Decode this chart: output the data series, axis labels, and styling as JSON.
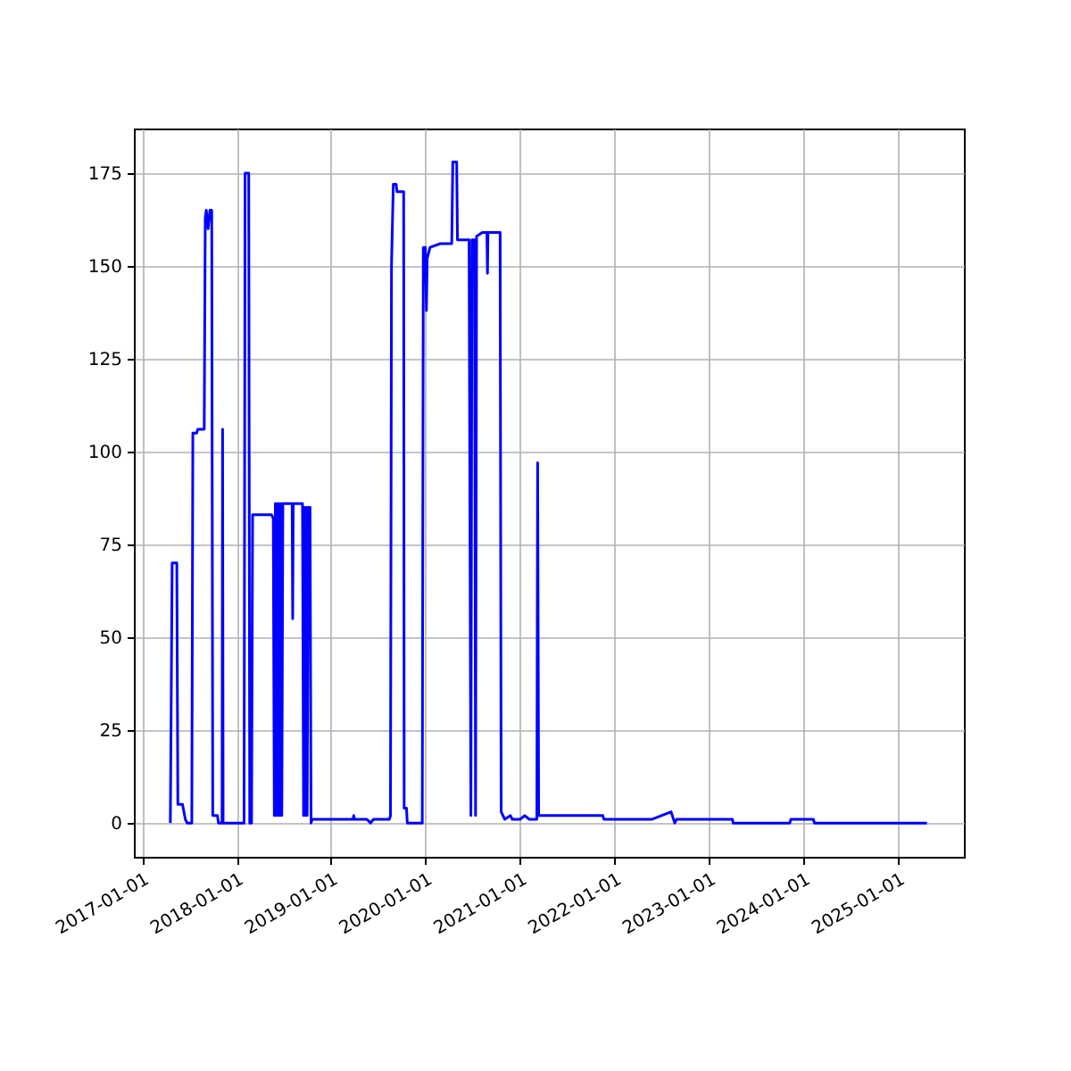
{
  "chart_data": {
    "type": "line",
    "x": [
      "2017-04-20",
      "2017-04-27",
      "2017-05-15",
      "2017-05-19",
      "2017-06-06",
      "2017-06-17",
      "2017-06-24",
      "2017-07-12",
      "2017-07-16",
      "2017-07-31",
      "2017-08-04",
      "2017-08-29",
      "2017-09-02",
      "2017-09-06",
      "2017-09-13",
      "2017-09-20",
      "2017-09-27",
      "2017-10-01",
      "2017-10-19",
      "2017-10-23",
      "2017-11-06",
      "2017-11-08",
      "2017-11-10",
      "2018-01-30",
      "2018-02-03",
      "2018-02-17",
      "2018-02-21",
      "2018-02-28",
      "2018-03-04",
      "2018-05-16",
      "2018-05-23",
      "2018-05-27",
      "2018-05-31",
      "2018-06-03",
      "2018-06-07",
      "2018-06-11",
      "2018-06-14",
      "2018-06-18",
      "2018-06-21",
      "2018-06-25",
      "2018-06-29",
      "2018-08-04",
      "2018-08-06",
      "2018-08-08",
      "2018-09-13",
      "2018-09-17",
      "2018-09-20",
      "2018-09-24",
      "2018-09-28",
      "2018-10-01",
      "2018-10-05",
      "2018-10-12",
      "2018-10-16",
      "2018-10-20",
      "2019-03-27",
      "2019-03-30",
      "2019-04-02",
      "2019-05-20",
      "2019-06-03",
      "2019-06-14",
      "2019-08-15",
      "2019-08-19",
      "2019-08-23",
      "2019-08-30",
      "2019-09-10",
      "2019-09-13",
      "2019-10-09",
      "2019-10-11",
      "2019-10-20",
      "2019-10-23",
      "2019-12-20",
      "2019-12-24",
      "2020-01-01",
      "2020-01-05",
      "2020-01-08",
      "2020-01-19",
      "2020-02-28",
      "2020-04-12",
      "2020-04-16",
      "2020-05-01",
      "2020-05-04",
      "2020-06-18",
      "2020-06-25",
      "2020-06-29",
      "2020-07-09",
      "2020-07-13",
      "2020-07-17",
      "2020-08-08",
      "2020-08-26",
      "2020-08-28",
      "2020-08-30",
      "2020-10-16",
      "2020-10-20",
      "2020-11-03",
      "2020-11-25",
      "2020-12-02",
      "2021-01-01",
      "2021-01-19",
      "2021-02-06",
      "2021-03-07",
      "2021-03-10",
      "2021-03-14",
      "2021-11-17",
      "2021-11-21",
      "2022-05-27",
      "2022-08-08",
      "2022-08-22",
      "2022-08-29",
      "2023-04-02",
      "2023-04-05",
      "2023-11-10",
      "2023-11-14",
      "2024-02-09",
      "2024-02-13",
      "2025-04-23"
    ],
    "series": [
      {
        "color": "#0000ff",
        "values": [
          0,
          70,
          70,
          5,
          5,
          1,
          0,
          0,
          105,
          105,
          106,
          106,
          163,
          165,
          160,
          165,
          165,
          2,
          2,
          0,
          0,
          106,
          0,
          0,
          175,
          175,
          0,
          0,
          83,
          83,
          82,
          2,
          86,
          2,
          86,
          2,
          86,
          2,
          86,
          2,
          86,
          86,
          55,
          86,
          86,
          2,
          85,
          2,
          85,
          2,
          85,
          85,
          0,
          1,
          1,
          2,
          1,
          1,
          0,
          1,
          1,
          2,
          150,
          172,
          172,
          170,
          170,
          4,
          4,
          0,
          0,
          155,
          155,
          138,
          152,
          155,
          156,
          156,
          178,
          178,
          157,
          157,
          2,
          157,
          157,
          2,
          158,
          159,
          159,
          148,
          159,
          159,
          3,
          1,
          2,
          1,
          1,
          2,
          1,
          1,
          97,
          2,
          2,
          1,
          1,
          3,
          0,
          1,
          1,
          0,
          0,
          1,
          1,
          0,
          0
        ]
      }
    ],
    "xlim": [
      "2016-11-30",
      "2025-09-13"
    ],
    "xticks": [
      "2017-01-01",
      "2018-01-01",
      "2019-01-01",
      "2020-01-01",
      "2021-01-01",
      "2022-01-01",
      "2023-01-01",
      "2024-01-01",
      "2025-01-01"
    ],
    "ylim": [
      -9.1,
      187
    ],
    "yticks": [
      0,
      25,
      50,
      75,
      100,
      125,
      150,
      175
    ],
    "grid": true
  }
}
